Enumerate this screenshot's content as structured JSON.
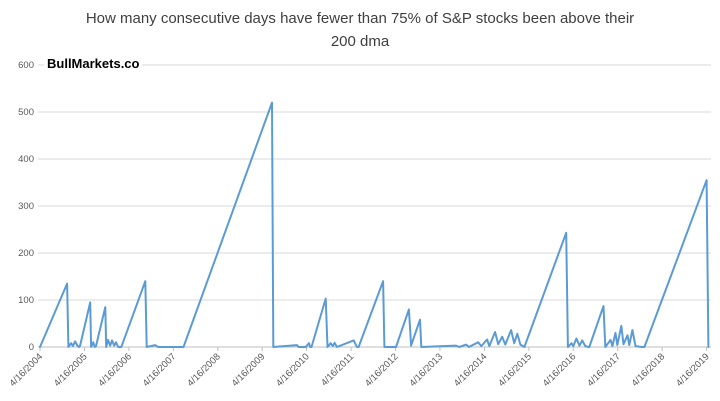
{
  "title": "How many consecutive days have fewer than 75% of S&P stocks been above their 200 dma",
  "watermark": "BullMarkets.co",
  "chart_data": {
    "type": "line",
    "title": "How many consecutive days have fewer than 75% of S&P stocks been above their 200 dma",
    "xlabel": "",
    "ylabel": "",
    "ylim": [
      0,
      600
    ],
    "y_ticks": [
      0,
      100,
      200,
      300,
      400,
      500,
      600
    ],
    "x_tick_labels": [
      "4/16/2004",
      "4/16/2005",
      "4/16/2006",
      "4/16/2007",
      "4/16/2008",
      "4/16/2009",
      "4/16/2010",
      "4/16/2011",
      "4/16/2012",
      "4/16/2013",
      "4/16/2014",
      "4/16/2015",
      "4/16/2016",
      "4/16/2017",
      "4/16/2018",
      "4/16/2019"
    ],
    "x_unit": "years since 4/16/2004",
    "grid": true,
    "legend_position": "none",
    "series_color": "#5B9BD5",
    "grid_color": "#D9D9D9",
    "axis_color": "#BFBFBF",
    "label_color": "#595959",
    "points": [
      [
        0,
        0
      ],
      [
        0.61,
        135
      ],
      [
        0.64,
        0
      ],
      [
        0.7,
        8
      ],
      [
        0.74,
        2
      ],
      [
        0.79,
        12
      ],
      [
        0.84,
        3
      ],
      [
        0.88,
        0
      ],
      [
        0.9,
        2
      ],
      [
        1.13,
        95
      ],
      [
        1.15,
        0
      ],
      [
        1.2,
        10
      ],
      [
        1.23,
        0
      ],
      [
        1.26,
        2
      ],
      [
        1.47,
        85
      ],
      [
        1.49,
        0
      ],
      [
        1.53,
        15
      ],
      [
        1.58,
        3
      ],
      [
        1.62,
        14
      ],
      [
        1.67,
        3
      ],
      [
        1.71,
        10
      ],
      [
        1.76,
        0
      ],
      [
        1.83,
        0
      ],
      [
        2.37,
        140
      ],
      [
        2.4,
        0
      ],
      [
        2.59,
        4
      ],
      [
        2.66,
        0
      ],
      [
        3.23,
        0
      ],
      [
        5.22,
        520
      ],
      [
        5.25,
        0
      ],
      [
        5.78,
        4
      ],
      [
        5.82,
        0
      ],
      [
        5.98,
        0
      ],
      [
        6.05,
        8
      ],
      [
        6.08,
        0
      ],
      [
        6.11,
        0
      ],
      [
        6.43,
        103
      ],
      [
        6.47,
        0
      ],
      [
        6.54,
        8
      ],
      [
        6.59,
        2
      ],
      [
        6.63,
        9
      ],
      [
        6.68,
        0
      ],
      [
        7.06,
        14
      ],
      [
        7.13,
        0
      ],
      [
        7.17,
        0
      ],
      [
        7.72,
        140
      ],
      [
        7.75,
        0
      ],
      [
        8.01,
        0
      ],
      [
        8.3,
        80
      ],
      [
        8.35,
        3
      ],
      [
        8.55,
        58
      ],
      [
        8.58,
        0
      ],
      [
        9.36,
        3
      ],
      [
        9.43,
        0
      ],
      [
        9.59,
        5
      ],
      [
        9.65,
        0
      ],
      [
        9.86,
        10
      ],
      [
        9.93,
        2
      ],
      [
        10.06,
        16
      ],
      [
        10.11,
        2
      ],
      [
        10.24,
        32
      ],
      [
        10.31,
        6
      ],
      [
        10.4,
        22
      ],
      [
        10.47,
        5
      ],
      [
        10.6,
        36
      ],
      [
        10.67,
        8
      ],
      [
        10.74,
        28
      ],
      [
        10.81,
        5
      ],
      [
        10.9,
        0
      ],
      [
        11.84,
        243
      ],
      [
        11.88,
        0
      ],
      [
        11.96,
        8
      ],
      [
        12.0,
        2
      ],
      [
        12.07,
        18
      ],
      [
        12.14,
        3
      ],
      [
        12.2,
        14
      ],
      [
        12.27,
        2
      ],
      [
        12.34,
        0
      ],
      [
        12.36,
        0
      ],
      [
        12.68,
        87
      ],
      [
        12.72,
        0
      ],
      [
        12.84,
        15
      ],
      [
        12.88,
        2
      ],
      [
        12.95,
        30
      ],
      [
        12.99,
        4
      ],
      [
        13.08,
        45
      ],
      [
        13.13,
        6
      ],
      [
        13.22,
        25
      ],
      [
        13.26,
        4
      ],
      [
        13.33,
        36
      ],
      [
        13.4,
        2
      ],
      [
        13.54,
        0
      ],
      [
        13.6,
        0
      ],
      [
        15.0,
        355
      ],
      [
        15.04,
        0
      ]
    ]
  }
}
